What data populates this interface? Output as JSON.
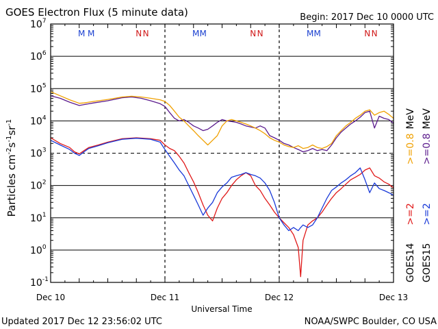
{
  "header": {
    "title": "GOES Electron Flux (5 minute data)",
    "begin": "Begin: 2017 Dec 10 0000 UTC"
  },
  "footer": {
    "updated": "Updated 2017 Dec 12 23:56:02 UTC",
    "credit": "NOAA/SWPC Boulder, CO USA"
  },
  "markers": {
    "m": "M",
    "n": "N",
    "m_color": "#1a3fd0",
    "n_color": "#d01818"
  },
  "right_legend": {
    "goes14": "GOES14",
    "goes15": "GOES15",
    "goes14_ge2": ">=2",
    "goes14_ge08": ">=0.8",
    "goes15_ge2": ">=2",
    "goes15_ge08": ">=0.8",
    "mev_top": "MeV",
    "mev_bottom": "MeV"
  },
  "chart_data": {
    "type": "line",
    "title": "GOES Electron Flux (5 minute data)",
    "xlabel": "Universal Time",
    "ylabel_base": "Particles cm",
    "ylabel_unit_parts": [
      "-2",
      "s",
      "-1",
      "sr",
      "-1"
    ],
    "y_scale": "log",
    "ylim": [
      0.1,
      10000000
    ],
    "xlim": [
      0,
      72
    ],
    "x_unit": "hours since 2017 Dec 10 0000 UTC",
    "x_ticks": [
      {
        "x": 0,
        "label": "Dec 10"
      },
      {
        "x": 24,
        "label": "Dec 11"
      },
      {
        "x": 48,
        "label": "Dec 12"
      },
      {
        "x": 72,
        "label": "Dec 13"
      }
    ],
    "y_ticks": [
      {
        "exp": "-1",
        "value": 0.1
      },
      {
        "exp": "0",
        "value": 1
      },
      {
        "exp": "1",
        "value": 10
      },
      {
        "exp": "2",
        "value": 100
      },
      {
        "exp": "3",
        "value": 1000
      },
      {
        "exp": "4",
        "value": 10000
      },
      {
        "exp": "5",
        "value": 100000
      },
      {
        "exp": "6",
        "value": 1000000
      },
      {
        "exp": "7",
        "value": 10000000
      }
    ],
    "threshold_dashed": 1000,
    "grid": "horizontal",
    "day_dividers": [
      24,
      48
    ],
    "m_marker_x": [
      6.5,
      8.5,
      30.5,
      32.0,
      54.5,
      56.0
    ],
    "n_marker_x": [
      18.5,
      20.0,
      42.5,
      44.0,
      66.5,
      68.0
    ],
    "series": [
      {
        "name": "GOES15 >=0.8 MeV",
        "color": "#5a1a8c",
        "x": [
          0,
          2,
          4,
          6,
          7,
          9,
          12,
          15,
          17,
          19,
          21,
          23,
          24,
          25,
          26,
          27,
          28,
          29,
          30,
          31,
          32,
          33,
          34,
          35,
          36,
          37,
          38,
          39,
          40,
          41,
          42,
          43,
          44,
          45,
          46,
          47,
          48,
          49,
          50,
          51,
          52,
          53,
          54,
          55,
          56,
          57,
          58,
          59,
          60,
          61,
          62,
          63,
          64,
          65,
          66,
          67,
          68,
          69,
          70,
          71,
          72
        ],
        "y": [
          60000,
          50000,
          38000,
          30000,
          32000,
          36000,
          42000,
          52000,
          55000,
          50000,
          42000,
          34000,
          28000,
          18000,
          12000,
          10000,
          11000,
          9000,
          7000,
          6000,
          5000,
          5500,
          7000,
          9000,
          11000,
          10000,
          9500,
          9000,
          8000,
          7000,
          6500,
          6000,
          7000,
          6000,
          3500,
          3000,
          2500,
          2000,
          1800,
          1500,
          1300,
          1100,
          1200,
          1400,
          1200,
          1300,
          1200,
          1800,
          3000,
          4500,
          6000,
          8000,
          10000,
          13000,
          18000,
          20000,
          6000,
          14000,
          12000,
          11000,
          8500
        ]
      },
      {
        "name": "GOES14 >=0.8 MeV",
        "color": "#f0a000",
        "x": [
          0,
          2,
          4,
          6,
          7,
          9,
          12,
          15,
          17,
          19,
          21,
          23,
          24,
          25,
          26,
          27,
          28,
          29,
          30,
          31,
          32,
          33,
          34,
          35,
          36,
          37,
          38,
          39,
          40,
          41,
          42,
          43,
          44,
          45,
          46,
          47,
          48,
          49,
          50,
          51,
          52,
          53,
          54,
          55,
          56,
          57,
          58,
          59,
          60,
          61,
          62,
          63,
          64,
          65,
          66,
          67,
          68,
          69,
          70,
          71,
          72
        ],
        "y": [
          80000,
          60000,
          45000,
          35000,
          36000,
          40000,
          46000,
          55000,
          58000,
          55000,
          50000,
          45000,
          40000,
          30000,
          20000,
          13000,
          10000,
          7000,
          5000,
          3500,
          2500,
          1800,
          2500,
          3500,
          7000,
          10000,
          11000,
          10000,
          9000,
          8000,
          7000,
          6000,
          5000,
          4000,
          3000,
          2500,
          2200,
          1800,
          1600,
          1500,
          1700,
          1400,
          1500,
          1800,
          1500,
          1400,
          1600,
          2000,
          3500,
          5000,
          7000,
          9000,
          12000,
          15000,
          20000,
          22000,
          15000,
          18000,
          20000,
          16000,
          12000
        ]
      },
      {
        "name": "GOES14 >=2 MeV",
        "color": "#e01818",
        "x": [
          0,
          2,
          4,
          5,
          6,
          7,
          8,
          10,
          12,
          15,
          18,
          21,
          23,
          24,
          25,
          26,
          27,
          28,
          29,
          30,
          31,
          32,
          33,
          34,
          35,
          36,
          37,
          38,
          39,
          40,
          41,
          42,
          43,
          44,
          45,
          46,
          47,
          48,
          49,
          50,
          51,
          52,
          52.5,
          53,
          54,
          55,
          56,
          57,
          58,
          59,
          60,
          61,
          62,
          63,
          64,
          65,
          66,
          67,
          68,
          69,
          70,
          71,
          72
        ],
        "y": [
          3000,
          2000,
          1500,
          1100,
          950,
          1200,
          1500,
          1800,
          2200,
          2800,
          3000,
          2800,
          2500,
          1800,
          1400,
          1200,
          800,
          500,
          250,
          130,
          60,
          25,
          12,
          8,
          20,
          40,
          60,
          100,
          150,
          200,
          250,
          200,
          100,
          70,
          40,
          25,
          15,
          10,
          7,
          5,
          3,
          1.2,
          0.15,
          2,
          6,
          8,
          10,
          15,
          25,
          40,
          60,
          80,
          110,
          150,
          180,
          220,
          300,
          350,
          200,
          170,
          130,
          110,
          85
        ]
      },
      {
        "name": "GOES15 >=2 MeV",
        "color": "#1838d8",
        "x": [
          0,
          2,
          4,
          5,
          6,
          7,
          8,
          10,
          12,
          15,
          18,
          21,
          23,
          24,
          25,
          26,
          27,
          28,
          29,
          30,
          31,
          32,
          33,
          34,
          35,
          36,
          37,
          38,
          39,
          40,
          41,
          42,
          43,
          44,
          45,
          46,
          47,
          48,
          49,
          50,
          51,
          52,
          52.5,
          53,
          54,
          55,
          56,
          57,
          58,
          59,
          60,
          61,
          62,
          63,
          64,
          65,
          66,
          67,
          68,
          69,
          70,
          71,
          72
        ],
        "y": [
          2500,
          1800,
          1300,
          1000,
          850,
          1100,
          1400,
          1700,
          2100,
          2700,
          2900,
          2700,
          2200,
          1300,
          800,
          500,
          300,
          200,
          100,
          50,
          25,
          12,
          20,
          30,
          60,
          90,
          120,
          180,
          200,
          220,
          250,
          220,
          200,
          170,
          120,
          70,
          30,
          10,
          6,
          4,
          5,
          4,
          5,
          6,
          5,
          6,
          10,
          20,
          40,
          70,
          90,
          120,
          150,
          200,
          250,
          350,
          150,
          60,
          120,
          80,
          70,
          60,
          50
        ]
      }
    ]
  }
}
